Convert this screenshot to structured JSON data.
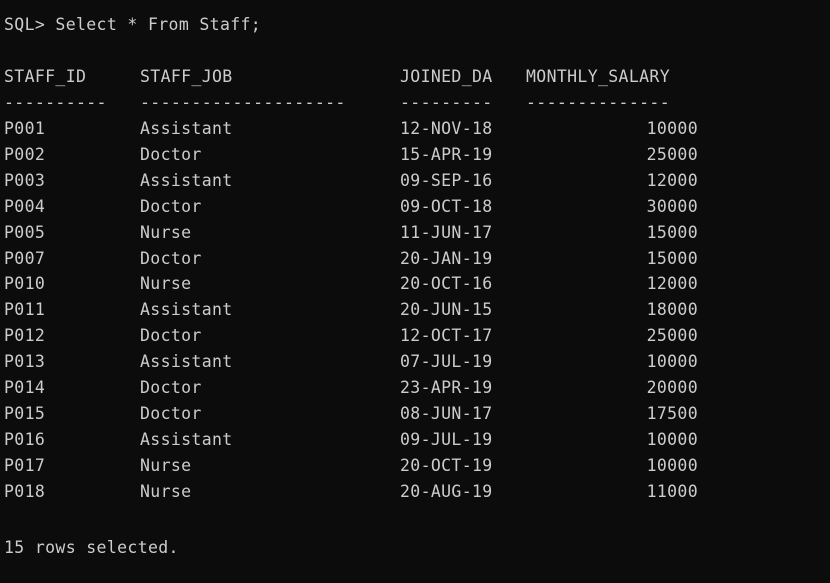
{
  "prompt_line": "SQL> Select * From Staff;",
  "headers": {
    "staff_id": "STAFF_ID",
    "staff_job": "STAFF_JOB",
    "joined_date": "JOINED_DA",
    "monthly_salary": "MONTHLY_SALARY"
  },
  "separators": {
    "staff_id": "----------",
    "staff_job": "--------------------",
    "joined_date": "---------",
    "monthly_salary": "--------------"
  },
  "rows": [
    {
      "staff_id": "P001",
      "staff_job": "Assistant",
      "joined_date": "12-NOV-18",
      "monthly_salary": "10000"
    },
    {
      "staff_id": "P002",
      "staff_job": "Doctor",
      "joined_date": "15-APR-19",
      "monthly_salary": "25000"
    },
    {
      "staff_id": "P003",
      "staff_job": "Assistant",
      "joined_date": "09-SEP-16",
      "monthly_salary": "12000"
    },
    {
      "staff_id": "P004",
      "staff_job": "Doctor",
      "joined_date": "09-OCT-18",
      "monthly_salary": "30000"
    },
    {
      "staff_id": "P005",
      "staff_job": "Nurse",
      "joined_date": "11-JUN-17",
      "monthly_salary": "15000"
    },
    {
      "staff_id": "P007",
      "staff_job": "Doctor",
      "joined_date": "20-JAN-19",
      "monthly_salary": "15000"
    },
    {
      "staff_id": "P010",
      "staff_job": "Nurse",
      "joined_date": "20-OCT-16",
      "monthly_salary": "12000"
    },
    {
      "staff_id": "P011",
      "staff_job": "Assistant",
      "joined_date": "20-JUN-15",
      "monthly_salary": "18000"
    },
    {
      "staff_id": "P012",
      "staff_job": "Doctor",
      "joined_date": "12-OCT-17",
      "monthly_salary": "25000"
    },
    {
      "staff_id": "P013",
      "staff_job": "Assistant",
      "joined_date": "07-JUL-19",
      "monthly_salary": "10000"
    },
    {
      "staff_id": "P014",
      "staff_job": "Doctor",
      "joined_date": "23-APR-19",
      "monthly_salary": "20000"
    },
    {
      "staff_id": "P015",
      "staff_job": "Doctor",
      "joined_date": "08-JUN-17",
      "monthly_salary": "17500"
    },
    {
      "staff_id": "P016",
      "staff_job": "Assistant",
      "joined_date": "09-JUL-19",
      "monthly_salary": "10000"
    },
    {
      "staff_id": "P017",
      "staff_job": "Nurse",
      "joined_date": "20-OCT-19",
      "monthly_salary": "10000"
    },
    {
      "staff_id": "P018",
      "staff_job": "Nurse",
      "joined_date": "20-AUG-19",
      "monthly_salary": "11000"
    }
  ],
  "footer": "15 rows selected."
}
